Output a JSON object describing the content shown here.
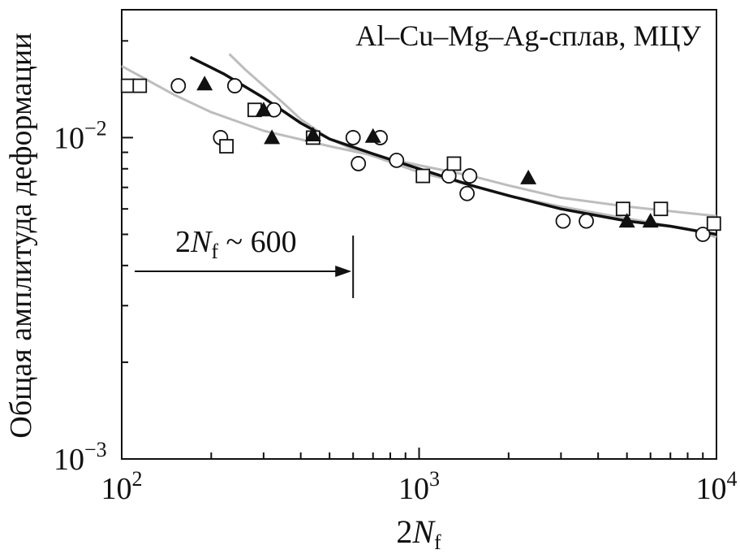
{
  "chart_data": {
    "type": "scatter",
    "title": "Al–Cu–Mg–Ag-сплав, МЦУ",
    "ylabel": "Общая амплитуда деформации",
    "xlabel": {
      "base": "2",
      "var": "N",
      "sub": "f"
    },
    "xscale": "log",
    "yscale": "log",
    "xlim": [
      100,
      10000
    ],
    "ylim": [
      0.001,
      0.025
    ],
    "x_ticks": [
      {
        "value": 100,
        "base": "10",
        "exp": "2"
      },
      {
        "value": 1000,
        "base": "10",
        "exp": "3"
      },
      {
        "value": 10000,
        "base": "10",
        "exp": "4"
      }
    ],
    "y_ticks": [
      {
        "value": 0.01,
        "base": "10",
        "exp": "−2"
      },
      {
        "value": 0.001,
        "base": "10",
        "exp": "−3"
      }
    ],
    "annotation": {
      "base": "2",
      "var": "N",
      "sub": "f",
      "rest": " ~ 600",
      "x": 600
    },
    "series": [
      {
        "marker": "circle",
        "points": [
          [
            155,
            0.0145
          ],
          [
            215,
            0.01
          ],
          [
            240,
            0.0145
          ],
          [
            325,
            0.0122
          ],
          [
            600,
            0.01
          ],
          [
            625,
            0.0083
          ],
          [
            740,
            0.01
          ],
          [
            840,
            0.0085
          ],
          [
            1260,
            0.0076
          ],
          [
            1450,
            0.0067
          ],
          [
            1480,
            0.0076
          ],
          [
            3050,
            0.0055
          ],
          [
            3650,
            0.0055
          ],
          [
            9000,
            0.005
          ]
        ]
      },
      {
        "marker": "square",
        "points": [
          [
            105,
            0.0145
          ],
          [
            115,
            0.0145
          ],
          [
            225,
            0.0094
          ],
          [
            280,
            0.0122
          ],
          [
            440,
            0.01
          ],
          [
            1030,
            0.0076
          ],
          [
            1310,
            0.0083
          ],
          [
            4850,
            0.006
          ],
          [
            6500,
            0.006
          ],
          [
            9800,
            0.0054
          ]
        ]
      },
      {
        "marker": "triangle",
        "points": [
          [
            190,
            0.0147
          ],
          [
            300,
            0.0122
          ],
          [
            320,
            0.01
          ],
          [
            440,
            0.0102
          ],
          [
            700,
            0.0101
          ],
          [
            2330,
            0.0075
          ],
          [
            5000,
            0.0055
          ],
          [
            6000,
            0.0055
          ]
        ]
      }
    ],
    "curves": [
      {
        "color": "#111111",
        "points": [
          [
            170,
            0.0178
          ],
          [
            220,
            0.0158
          ],
          [
            300,
            0.0133
          ],
          [
            400,
            0.0111
          ],
          [
            500,
            0.0099
          ],
          [
            700,
            0.0089
          ],
          [
            1000,
            0.008
          ],
          [
            1500,
            0.0071
          ],
          [
            2000,
            0.0066
          ],
          [
            3000,
            0.006
          ],
          [
            5000,
            0.0055
          ],
          [
            7000,
            0.0053
          ],
          [
            10000,
            0.005
          ]
        ]
      },
      {
        "color": "#bdbdbd",
        "points": [
          [
            100,
            0.0167
          ],
          [
            150,
            0.0136
          ],
          [
            200,
            0.012
          ],
          [
            300,
            0.0105
          ],
          [
            500,
            0.0094
          ],
          [
            700,
            0.0088
          ],
          [
            1000,
            0.0082
          ],
          [
            1500,
            0.0076
          ],
          [
            2000,
            0.0071
          ],
          [
            3000,
            0.0065
          ],
          [
            5000,
            0.0061
          ],
          [
            10000,
            0.0057
          ]
        ]
      },
      {
        "color": "#bdbdbd",
        "points": [
          [
            230,
            0.0182
          ],
          [
            260,
            0.0163
          ],
          [
            300,
            0.0145
          ],
          [
            350,
            0.0128
          ],
          [
            400,
            0.0114
          ],
          [
            500,
            0.0099
          ],
          [
            600,
            0.0092
          ],
          [
            800,
            0.0084
          ],
          [
            1000,
            0.0078
          ],
          [
            1500,
            0.0071
          ],
          [
            2000,
            0.0066
          ],
          [
            3000,
            0.0061
          ],
          [
            5000,
            0.0056
          ],
          [
            8000,
            0.0052
          ],
          [
            10000,
            0.0049
          ]
        ]
      }
    ]
  }
}
